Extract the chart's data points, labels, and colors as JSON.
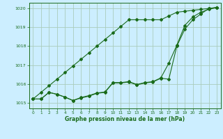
{
  "title": "Graphe pression niveau de la mer (hPa)",
  "bg_color": "#cceeff",
  "line_color": "#1a6b1a",
  "grid_color": "#aaccbb",
  "xlim": [
    -0.5,
    23.5
  ],
  "ylim": [
    1014.7,
    1020.3
  ],
  "yticks": [
    1015,
    1016,
    1017,
    1018,
    1019,
    1020
  ],
  "xticks": [
    0,
    1,
    2,
    3,
    4,
    5,
    6,
    7,
    8,
    9,
    10,
    11,
    12,
    13,
    14,
    15,
    16,
    17,
    18,
    19,
    20,
    21,
    22,
    23
  ],
  "series": [
    [
      1015.2,
      1015.2,
      1015.55,
      1015.45,
      1015.3,
      1015.12,
      1015.25,
      1015.35,
      1015.5,
      1015.55,
      1016.05,
      1016.05,
      1016.1,
      1015.95,
      1016.05,
      1016.1,
      1016.3,
      1016.25,
      1018.0,
      1018.9,
      1019.4,
      1019.7,
      1020.0,
      1020.05
    ],
    [
      1015.2,
      1015.2,
      1015.55,
      1015.45,
      1015.3,
      1015.12,
      1015.28,
      1015.38,
      1015.52,
      1015.57,
      1016.07,
      1016.07,
      1016.12,
      1015.97,
      1016.07,
      1016.12,
      1016.32,
      1017.1,
      1018.05,
      1019.1,
      1019.55,
      1019.8,
      1019.95,
      1020.05
    ],
    [
      1015.2,
      1015.55,
      1015.9,
      1016.25,
      1016.6,
      1016.95,
      1017.3,
      1017.65,
      1018.0,
      1018.35,
      1018.7,
      1019.05,
      1019.4,
      1019.4,
      1019.4,
      1019.4,
      1019.4,
      1019.6,
      1019.8,
      1019.85,
      1019.9,
      1019.95,
      1020.0,
      1020.05
    ]
  ]
}
